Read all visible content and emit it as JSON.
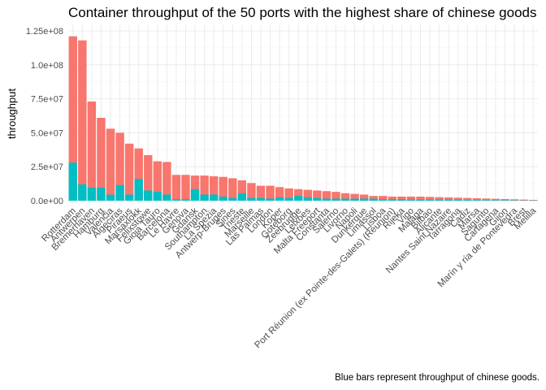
{
  "chart_data": {
    "type": "bar",
    "title": "Container throughput of the 50 ports with the highest share of chinese goods",
    "xlabel": "",
    "ylabel": "throughput",
    "caption": "Blue bars represent throughput of chinese goods.",
    "ylim": [
      0,
      125000000
    ],
    "yticks": [
      0,
      25000000,
      50000000,
      75000000,
      100000000,
      125000000
    ],
    "ytick_labels": [
      "0.0e+00",
      "2.5e+07",
      "5.0e+07",
      "7.5e+07",
      "1.0e+08",
      "1.25e+08"
    ],
    "grid": true,
    "colors": {
      "total": "#F8766D",
      "chinese": "#00BFC4",
      "grid": "#ebebeb"
    },
    "categories": [
      "Rotterdam",
      "Antwerpen",
      "Bremerhaven",
      "Hamburg",
      "Valencia",
      "Algeciras",
      "Piraeus",
      "Marsaxlokk",
      "Felixstowe",
      "Gioia Tauro",
      "Barcelona",
      "Le Havre",
      "Genova",
      "Gdansk",
      "Southampton",
      "La Spezia",
      "Antwerp-Bruges",
      "Sines",
      "Trieste",
      "Marseille",
      "Las Palmas",
      "London",
      "Koper",
      "Goteborg",
      "Zeebrugge",
      "Leixoes",
      "Malta Freeport",
      "Constanta",
      "Salerno",
      "Livorno",
      "Napoli",
      "Dunkerque",
      "Limassol",
      "Lisboa",
      "Port Réunion (ex Pointe-des-Galets) (Réunion)",
      "Rijeka",
      "Vigo",
      "Malaga",
      "Bilbao",
      "Alicante",
      "Nantes Saint Nazaire",
      "Tarragona",
      "Cadiz",
      "Marsa",
      "Sagunto",
      "Cartagena",
      "Gijon",
      "Marín y ría de Pontevedra",
      "Brest",
      "Melilla"
    ],
    "series": [
      {
        "name": "",
        "values": [
          121000000,
          118000000,
          73000000,
          61000000,
          53000000,
          50000000,
          42000000,
          38500000,
          33500000,
          29000000,
          28500000,
          19000000,
          19000000,
          18500000,
          18500000,
          18000000,
          17500000,
          16500000,
          15000000,
          13000000,
          11000000,
          11000000,
          10000000,
          9000000,
          8500000,
          8000000,
          7500000,
          7000000,
          6500000,
          5500000,
          5000000,
          4500000,
          3500000,
          3500000,
          3000000,
          3000000,
          3000000,
          3000000,
          2800000,
          2600000,
          2400000,
          2200000,
          2000000,
          1800000,
          1600000,
          1400000,
          1200000,
          1000000,
          800000,
          600000
        ]
      },
      {
        "name": "",
        "values": [
          28000000,
          12000000,
          9500000,
          9500000,
          4500000,
          11500000,
          4500000,
          16000000,
          7500000,
          6500000,
          4500000,
          1000000,
          1000000,
          8500000,
          4500000,
          4500000,
          3000000,
          2000000,
          5500000,
          2000000,
          2000000,
          1500000,
          2500000,
          2000000,
          3500000,
          2500000,
          2000000,
          1500000,
          1500000,
          1500000,
          1500000,
          1500000,
          1500000,
          1000000,
          1000000,
          1000000,
          800000,
          800000,
          800000,
          800000,
          700000,
          700000,
          600000,
          500000,
          500000,
          400000,
          400000,
          300000,
          200000,
          200000
        ]
      }
    ]
  }
}
